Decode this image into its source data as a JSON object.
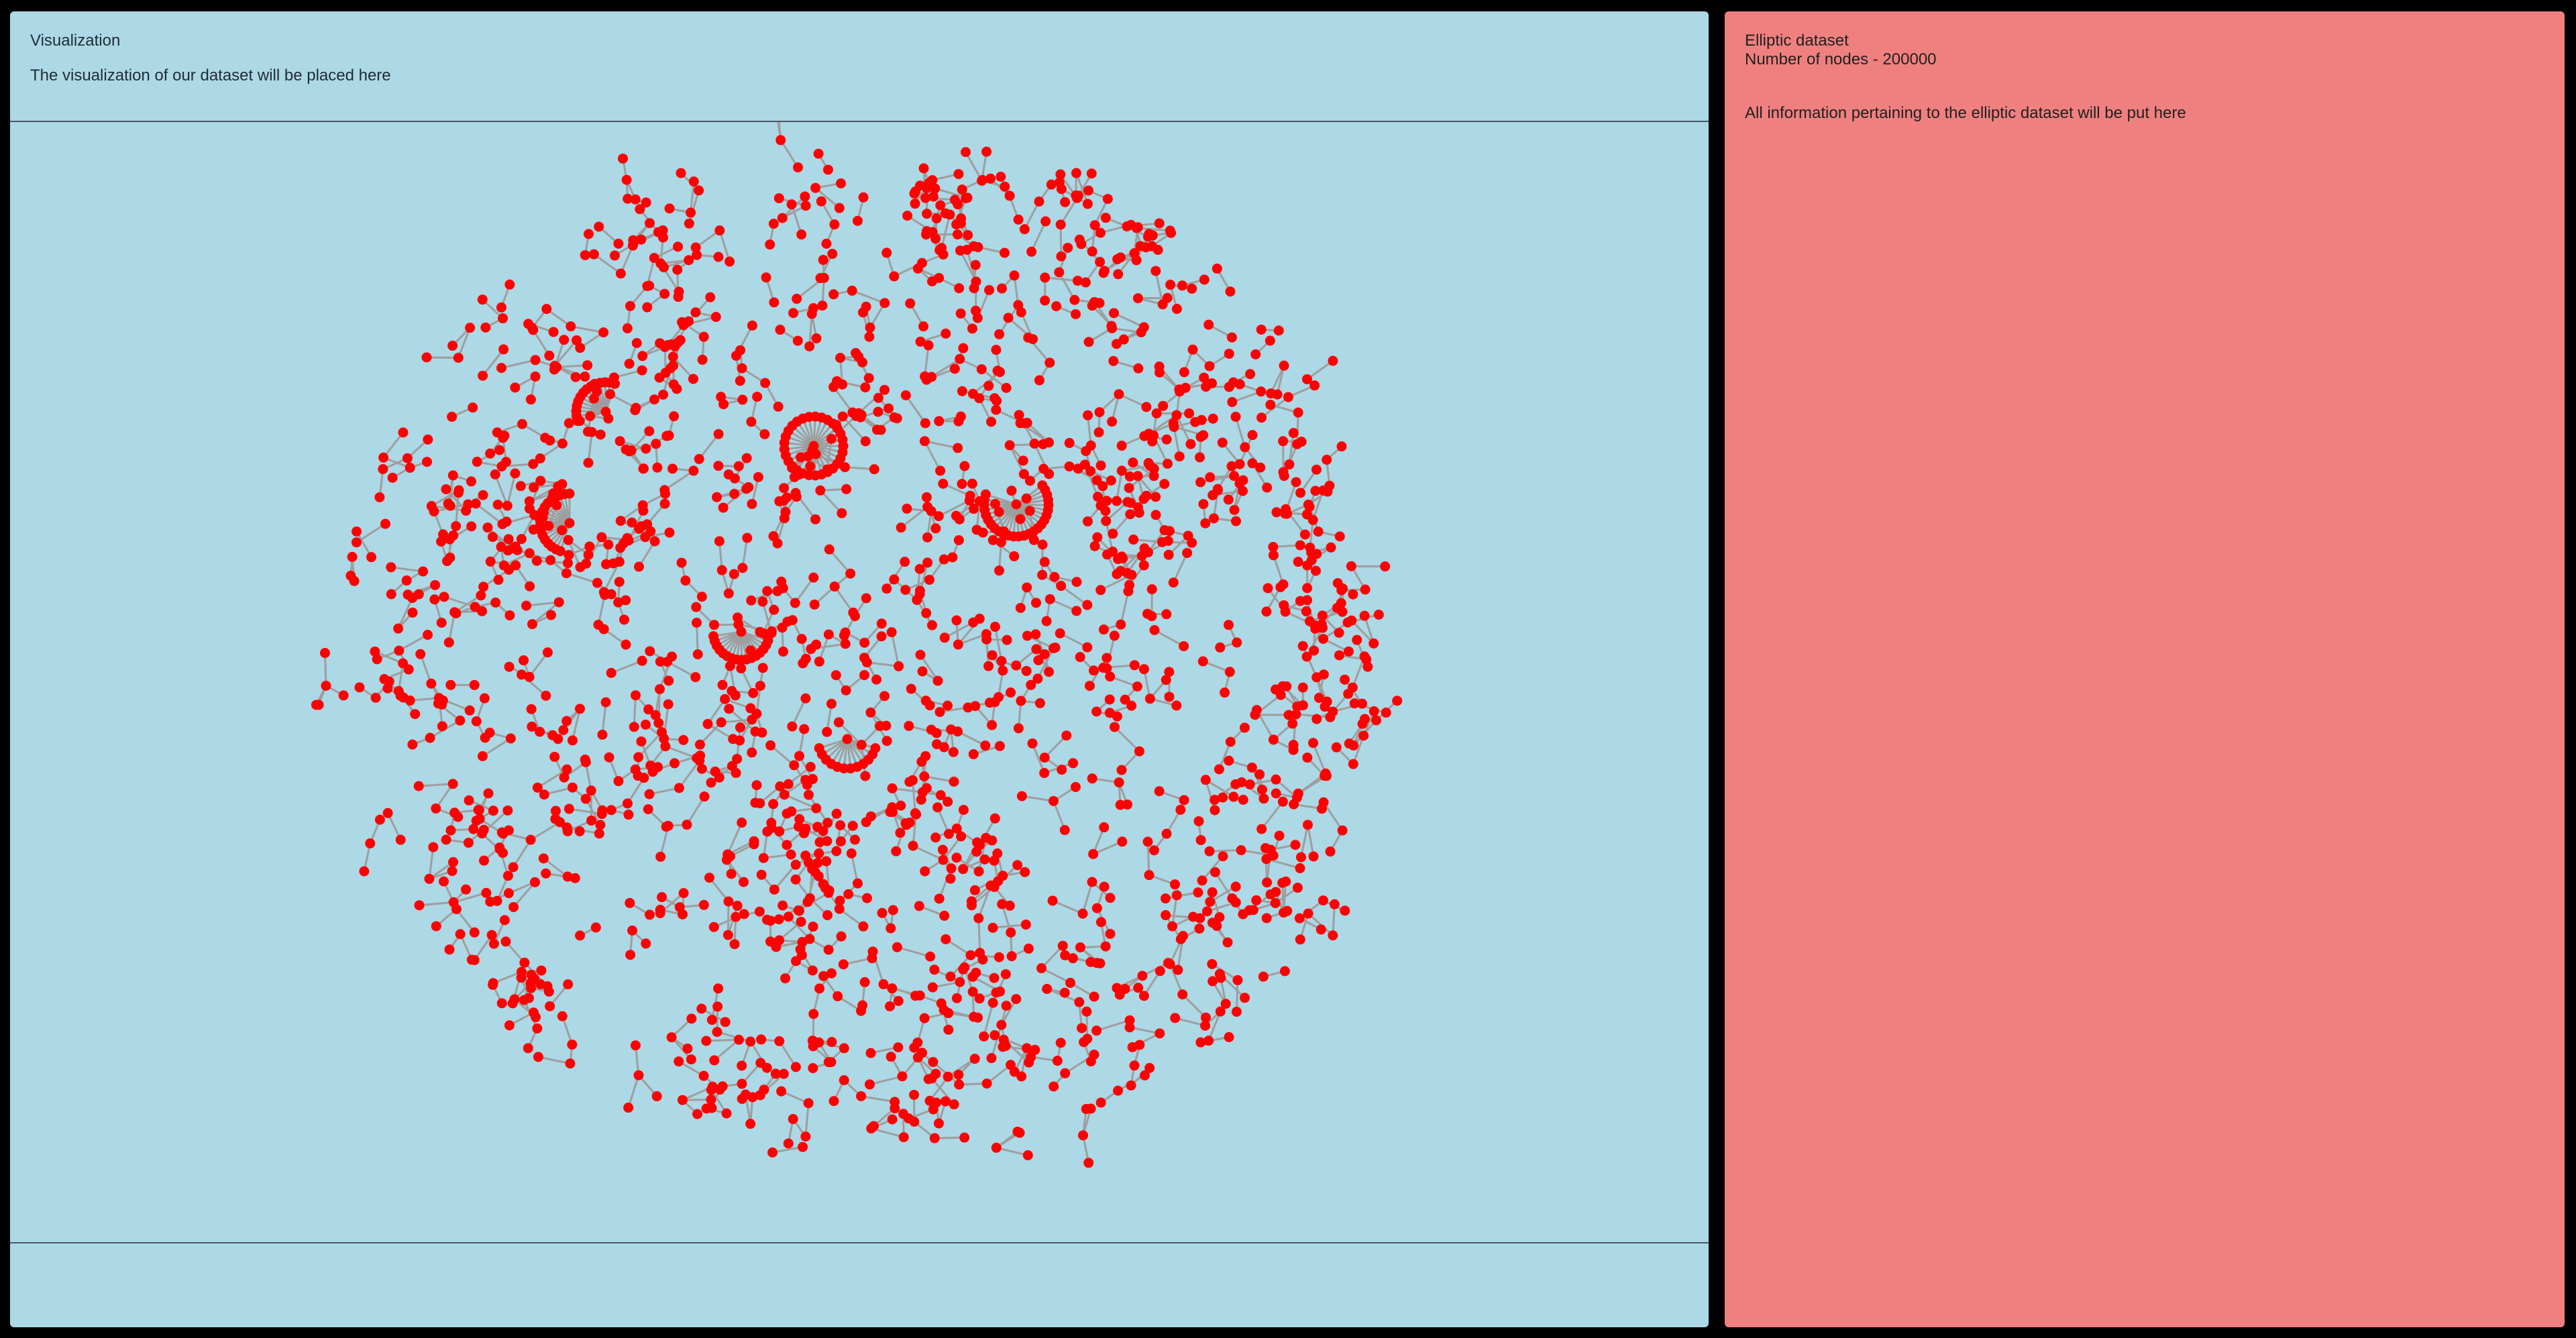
{
  "visualization": {
    "title": "Visualization",
    "subtitle": "The visualization of our dataset will be placed here",
    "node_color": "#ff0000",
    "edge_color": "#9e9e9e",
    "background": "#add8e6"
  },
  "info_panel": {
    "title": "Elliptic dataset",
    "node_count_label": "Number of nodes - 200000",
    "description": "All information pertaining to the elliptic dataset will be put here",
    "background": "#f08080"
  }
}
